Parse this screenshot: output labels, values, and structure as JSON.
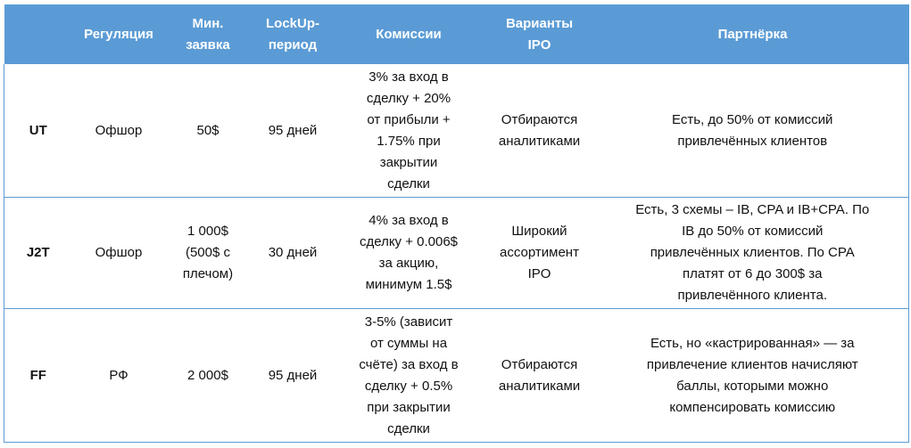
{
  "headers": [
    "",
    "Регуляция",
    "Мин.\nзаявка",
    "LockUp-\nпериод",
    "Комиссии",
    "Варианты\nIPO",
    "Партнёрка"
  ],
  "rows": [
    {
      "name": "UT",
      "regulation": "Офшор",
      "min_order": "50$",
      "lockup": "95 дней",
      "commission": "3% за вход в\nсделку + 20%\nот прибыли +\n1.75% при\nзакрытии\nсделки",
      "ipo": "Отбираются\nаналитиками",
      "partner": "Есть, до 50% от комиссий\nпривлечённых клиентов"
    },
    {
      "name": "J2T",
      "regulation": "Офшор",
      "min_order": "1 000$\n(500$ с\nплечом)",
      "lockup": "30 дней",
      "commission": "4% за вход в\nсделку + 0.006$\nза акцию,\nминимум 1.5$",
      "ipo": "Широкий\nассортимент\nIPO",
      "partner": "Есть, 3 схемы – IB, CPA и IB+CPA. По\nIB до 50% от комиссий\nпривлечённых клиентов. По CPA\nплатят от 6 до 300$ за\nпривлечённого клиента."
    },
    {
      "name": "FF",
      "regulation": "РФ",
      "min_order": "2 000$",
      "lockup": "95 дней",
      "commission": "3-5% (зависит\nот суммы на\nсчёте) за вход в\nсделку + 0.5%\nпри закрытии\nсделки",
      "ipo": "Отбираются\nаналитиками",
      "partner": "Есть, но «кастрированная» — за\nпривлечение клиентов начисляют\nбаллы, которыми можно\nкомпенсировать комиссию"
    }
  ],
  "colors": {
    "header_bg": "#5b9bd5",
    "header_text": "#ffffff",
    "border": "#5b9bd5"
  }
}
